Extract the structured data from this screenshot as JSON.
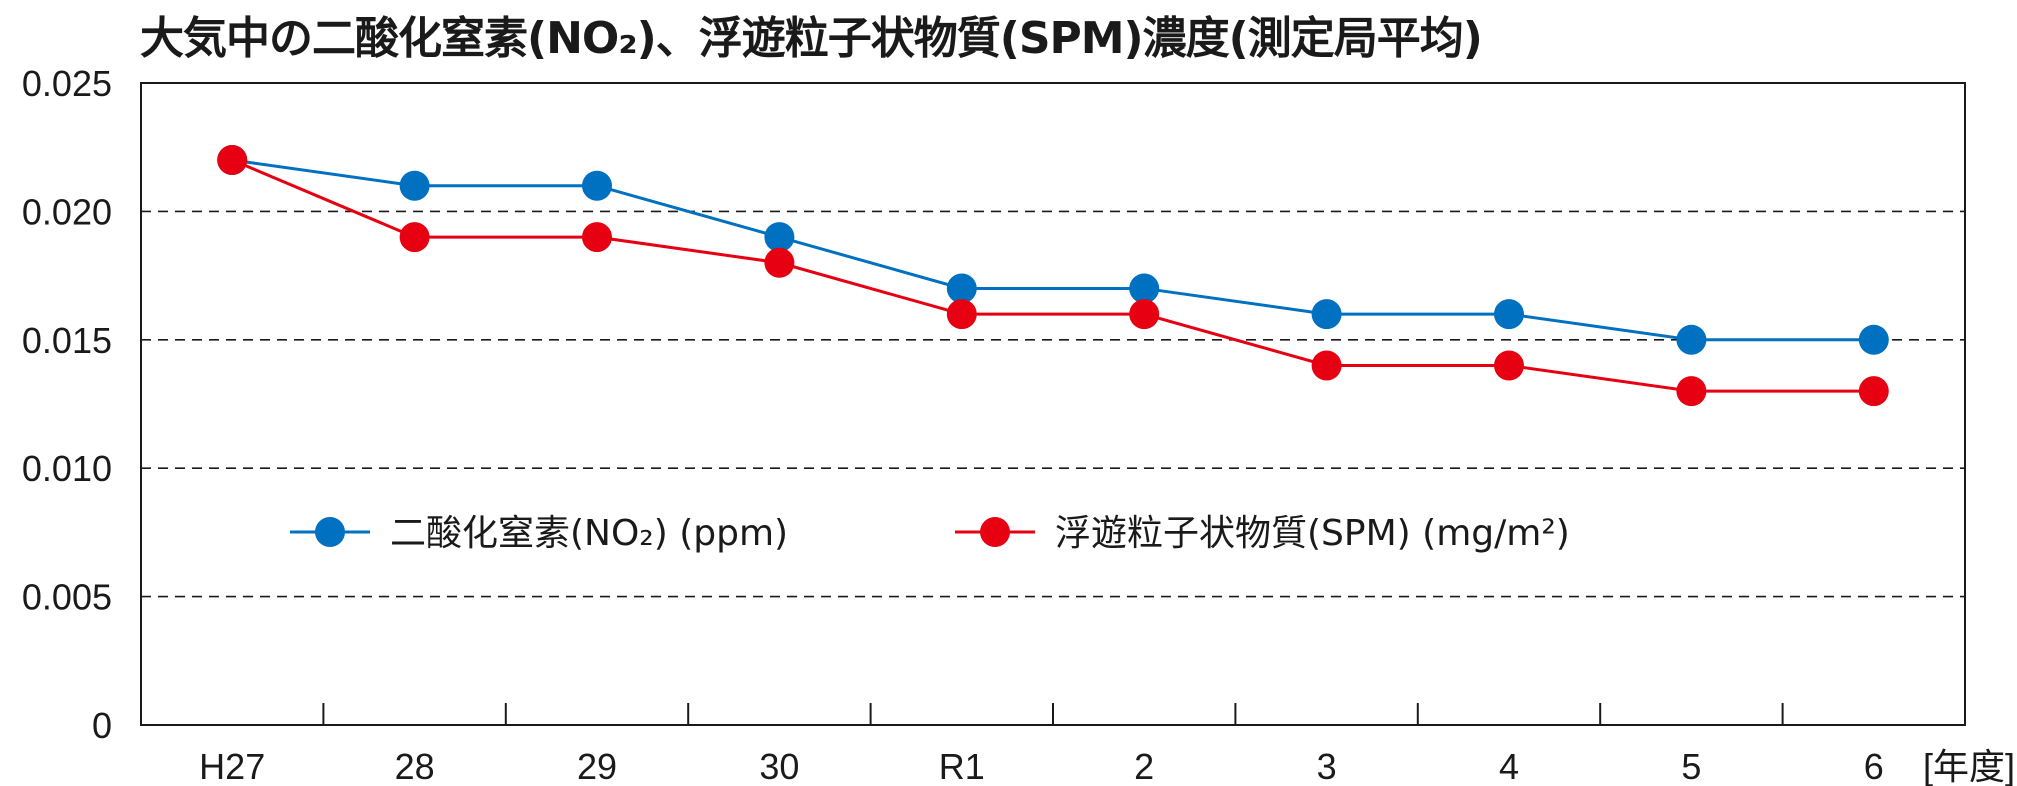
{
  "title": "大気中の二酸化窒素(NO₂)、浮遊粒子状物質(SPM)濃度(測定局平均)",
  "chart_data": {
    "type": "line",
    "title": "大気中の二酸化窒素(NO₂)、浮遊粒子状物質(SPM)濃度(測定局平均)",
    "categories": [
      "H27",
      "28",
      "29",
      "30",
      "R1",
      "2",
      "3",
      "4",
      "5",
      "6"
    ],
    "xunit": "[年度]",
    "yticks": [
      "0",
      "0.005",
      "0.010",
      "0.015",
      "0.020",
      "0.025"
    ],
    "ylim": [
      0,
      0.025
    ],
    "grid": "dashed horizontal",
    "legend_position": "center-left",
    "series": [
      {
        "name": "二酸化窒素(NO₂) (ppm)",
        "color": "#0070c0",
        "values": [
          0.022,
          0.021,
          0.021,
          0.019,
          0.017,
          0.017,
          0.016,
          0.016,
          0.015,
          0.015
        ]
      },
      {
        "name": "浮遊粒子状物質(SPM) (mg/m²)",
        "color": "#e60012",
        "values": [
          0.022,
          0.019,
          0.019,
          0.018,
          0.016,
          0.016,
          0.014,
          0.014,
          0.013,
          0.013
        ]
      }
    ]
  }
}
